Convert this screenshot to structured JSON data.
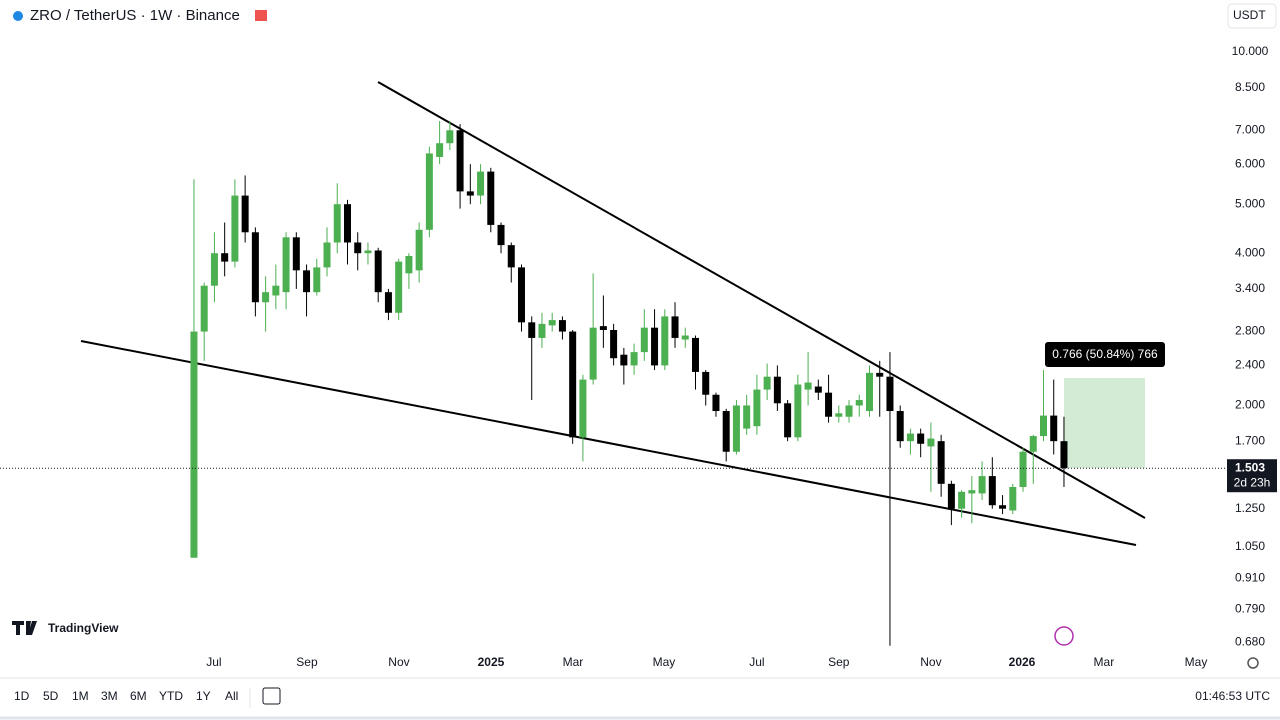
{
  "header": {
    "symbol": "ZRO / TetherUS · 1W · Binance",
    "currency": "USDT"
  },
  "chart_data": {
    "type": "candlestick",
    "log_scale": true,
    "up_color": "#4caf50",
    "down_color": "#000000",
    "xlim": [
      -18.95,
      100.44
    ],
    "xticks": [
      {
        "value": 1.95,
        "label": "Jul"
      },
      {
        "value": 11.04,
        "label": "Sep"
      },
      {
        "value": 20.03,
        "label": "Nov"
      },
      {
        "value": 29.02,
        "label": "2025"
      },
      {
        "value": 37.03,
        "label": "Mar"
      },
      {
        "value": 45.92,
        "label": "May"
      },
      {
        "value": 55.0,
        "label": "Jul"
      },
      {
        "value": 63.0,
        "label": "Sep"
      },
      {
        "value": 72.0,
        "label": "Nov"
      },
      {
        "value": 80.9,
        "label": "2026"
      },
      {
        "value": 88.9,
        "label": "Mar"
      },
      {
        "value": 97.9,
        "label": "May"
      }
    ],
    "ylim": [
      0.657,
      10.95
    ],
    "yticks": [
      {
        "value": 10,
        "label": "10.000"
      },
      {
        "value": 8.5,
        "label": "8.500"
      },
      {
        "value": 7,
        "label": "7.000"
      },
      {
        "value": 6,
        "label": "6.000"
      },
      {
        "value": 5,
        "label": "5.000"
      },
      {
        "value": 4,
        "label": "4.000"
      },
      {
        "value": 3.4,
        "label": "3.400"
      },
      {
        "value": 2.8,
        "label": "2.800"
      },
      {
        "value": 2.4,
        "label": "2.400"
      },
      {
        "value": 2,
        "label": "2.000"
      },
      {
        "value": 1.7,
        "label": "1.700"
      },
      {
        "value": 1.25,
        "label": "1.250"
      },
      {
        "value": 1.05,
        "label": "1.050"
      },
      {
        "value": 0.91,
        "label": "0.910"
      },
      {
        "value": 0.79,
        "label": "0.790"
      },
      {
        "value": 0.68,
        "label": "0.680"
      }
    ],
    "open": [
      1.0,
      2.8,
      3.45,
      4.0,
      3.85,
      5.2,
      4.4,
      3.2,
      3.3,
      3.35,
      4.3,
      3.7,
      3.35,
      3.75,
      4.2,
      5.0,
      4.2,
      4.0,
      4.05,
      3.35,
      3.05,
      3.65,
      3.7,
      4.45,
      6.2,
      6.6,
      7.0,
      5.3,
      5.2,
      5.8,
      4.55,
      4.15,
      3.75,
      2.92,
      2.72,
      2.88,
      2.95,
      2.8,
      1.73,
      2.25,
      2.87,
      2.82,
      2.52,
      2.4,
      2.55,
      2.85,
      2.4,
      3.0,
      2.7,
      2.72,
      2.33,
      2.1,
      1.95,
      1.62,
      1.8,
      1.82,
      2.15,
      2.28,
      2.02,
      1.73,
      2.15,
      2.18,
      2.12,
      1.9,
      1.9,
      2.0,
      1.95,
      2.32,
      2.28,
      1.95,
      1.7,
      1.76,
      1.66,
      1.7,
      1.4,
      1.25,
      1.34,
      1.34,
      1.45,
      1.27,
      1.24,
      1.38,
      1.62,
      1.74,
      1.91,
      1.7
    ],
    "high": [
      5.6,
      3.5,
      4.4,
      4.6,
      5.6,
      5.7,
      4.5,
      3.6,
      3.8,
      4.4,
      4.4,
      3.8,
      3.9,
      4.5,
      5.5,
      5.1,
      4.4,
      4.2,
      4.1,
      3.4,
      3.9,
      4.0,
      4.6,
      6.5,
      7.3,
      7.3,
      7.2,
      6.0,
      6.0,
      5.9,
      4.6,
      4.2,
      3.8,
      3.0,
      3.05,
      3.05,
      3.0,
      2.82,
      2.3,
      3.65,
      3.3,
      2.9,
      2.6,
      2.65,
      3.1,
      3.1,
      3.1,
      3.2,
      2.85,
      2.75,
      2.35,
      2.12,
      1.97,
      2.05,
      2.1,
      2.3,
      2.42,
      2.4,
      2.05,
      2.3,
      2.55,
      2.25,
      2.3,
      2.0,
      2.05,
      2.1,
      2.4,
      2.45,
      2.55,
      2.0,
      1.8,
      1.8,
      1.85,
      1.75,
      1.42,
      1.36,
      1.45,
      1.55,
      1.58,
      1.33,
      1.4,
      1.65,
      1.75,
      2.35,
      2.25,
      1.9
    ],
    "low": [
      1.0,
      2.45,
      3.2,
      3.6,
      3.75,
      4.2,
      3.0,
      2.8,
      3.1,
      3.1,
      3.4,
      3.0,
      3.3,
      3.6,
      4.0,
      3.8,
      3.7,
      3.8,
      3.2,
      2.95,
      2.95,
      3.4,
      3.5,
      4.3,
      6.0,
      6.4,
      4.9,
      5.0,
      5.0,
      4.4,
      4.0,
      3.5,
      2.8,
      2.05,
      2.6,
      2.8,
      2.7,
      1.68,
      1.55,
      2.2,
      2.6,
      2.4,
      2.2,
      2.3,
      2.45,
      2.35,
      2.35,
      2.6,
      2.6,
      2.15,
      2.0,
      1.9,
      1.55,
      1.6,
      1.75,
      1.75,
      2.05,
      1.95,
      1.7,
      1.7,
      2.0,
      2.05,
      1.85,
      1.85,
      1.85,
      1.9,
      1.9,
      1.9,
      0.67,
      1.65,
      1.6,
      1.58,
      1.35,
      1.32,
      1.16,
      1.2,
      1.17,
      1.3,
      1.25,
      1.22,
      1.22,
      1.35,
      1.4,
      1.7,
      1.6,
      1.38
    ],
    "close": [
      2.8,
      3.45,
      4.0,
      3.85,
      5.2,
      4.4,
      3.2,
      3.35,
      3.45,
      4.3,
      3.7,
      3.35,
      3.75,
      4.2,
      5.0,
      4.2,
      4.0,
      4.05,
      3.35,
      3.05,
      3.85,
      3.95,
      4.45,
      6.3,
      6.6,
      7.0,
      5.3,
      5.2,
      5.8,
      4.55,
      4.15,
      3.75,
      2.92,
      2.72,
      2.9,
      2.95,
      2.8,
      1.73,
      2.25,
      2.85,
      2.82,
      2.48,
      2.4,
      2.55,
      2.85,
      2.4,
      3.0,
      2.72,
      2.75,
      2.33,
      2.1,
      1.95,
      1.62,
      2.0,
      2.0,
      2.15,
      2.28,
      2.02,
      1.73,
      2.2,
      2.22,
      2.12,
      1.9,
      1.93,
      2.0,
      2.05,
      2.32,
      2.28,
      1.95,
      1.7,
      1.76,
      1.68,
      1.72,
      1.4,
      1.25,
      1.35,
      1.36,
      1.45,
      1.27,
      1.25,
      1.38,
      1.62,
      1.74,
      1.91,
      1.7,
      1.503
    ],
    "last_price": 1.503,
    "countdown": "2d 23h",
    "annotation": "0.766 (50.84%) 766"
  },
  "branding": "TradingView",
  "toolbar": {
    "ranges": [
      "1D",
      "5D",
      "1M",
      "3M",
      "6M",
      "YTD",
      "1Y",
      "All"
    ],
    "time": "01:46:53 UTC"
  }
}
